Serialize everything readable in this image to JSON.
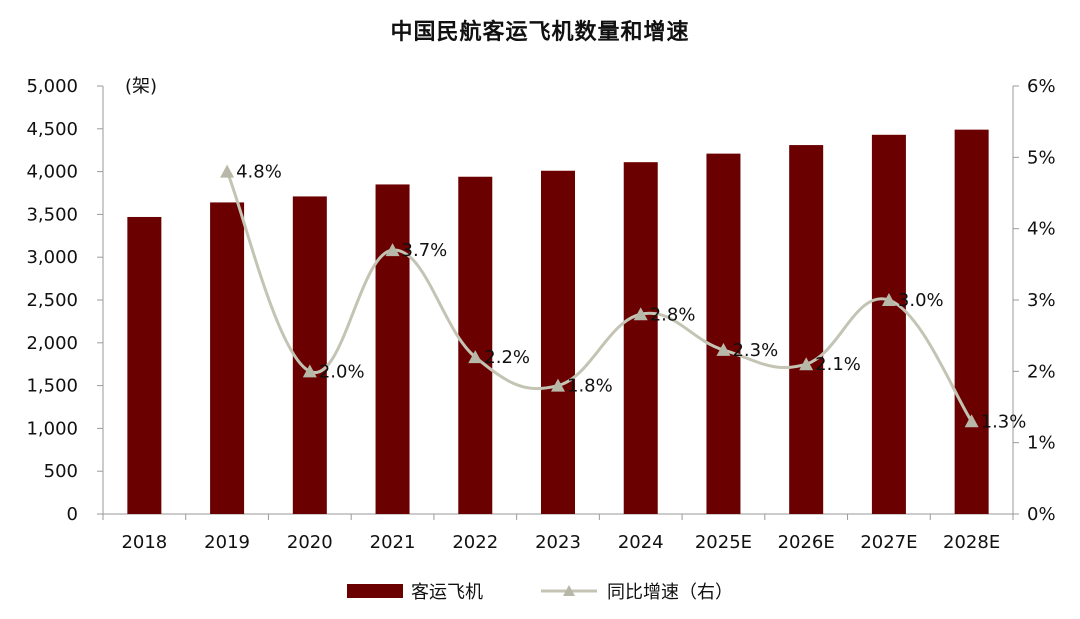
{
  "chart_data": {
    "type": "bar",
    "title": "中国民航客运飞机数量和增速",
    "left_unit": "(架)",
    "categories": [
      "2018",
      "2019",
      "2020",
      "2021",
      "2022",
      "2023",
      "2024",
      "2025E",
      "2026E",
      "2027E",
      "2028E"
    ],
    "series": [
      {
        "name": "客运飞机",
        "type": "bar",
        "axis": "left",
        "color": "#6b0000",
        "values": [
          3470,
          3640,
          3710,
          3850,
          3940,
          4010,
          4110,
          4210,
          4310,
          4430,
          4490
        ]
      },
      {
        "name": "同比增速（右）",
        "type": "line",
        "axis": "right",
        "color": "#c4c4b4",
        "values": [
          null,
          4.8,
          2.0,
          3.7,
          2.2,
          1.8,
          2.8,
          2.3,
          2.1,
          3.0,
          1.3
        ],
        "labels": [
          "",
          "4.8%",
          "2.0%",
          "3.7%",
          "2.2%",
          "1.8%",
          "2.8%",
          "2.3%",
          "2.1%",
          "3.0%",
          "1.3%"
        ]
      }
    ],
    "ylim_left": [
      0,
      5000
    ],
    "yticks_left": [
      "0",
      "500",
      "1,000",
      "1,500",
      "2,000",
      "2,500",
      "3,000",
      "3,500",
      "4,000",
      "4,500",
      "5,000"
    ],
    "ylim_right": [
      0,
      6
    ],
    "yticks_right": [
      "0%",
      "1%",
      "2%",
      "3%",
      "4%",
      "5%",
      "6%"
    ],
    "legend_position": "bottom",
    "grid": false
  }
}
